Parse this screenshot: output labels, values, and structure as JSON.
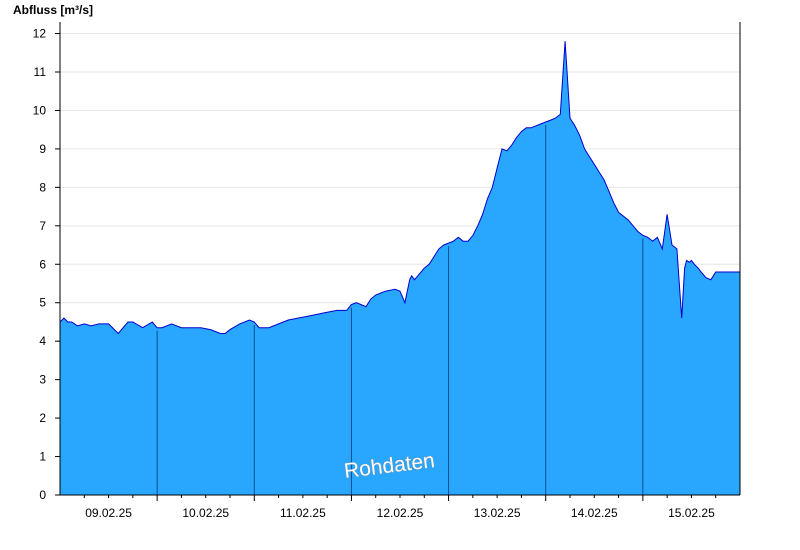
{
  "chart_data": {
    "type": "area",
    "ylabel": "Abfluss [m³/s]",
    "ylim": [
      0,
      12.3
    ],
    "yticks": [
      0,
      1,
      2,
      3,
      4,
      5,
      6,
      7,
      8,
      9,
      10,
      11,
      12
    ],
    "xlim": [
      0,
      7.0
    ],
    "day_boundaries": [
      1,
      2,
      3,
      4,
      5,
      6
    ],
    "xticks": [
      {
        "x": 0.5,
        "label": "09.02.25"
      },
      {
        "x": 1.5,
        "label": "10.02.25"
      },
      {
        "x": 2.5,
        "label": "11.02.25"
      },
      {
        "x": 3.5,
        "label": "12.02.25"
      },
      {
        "x": 4.5,
        "label": "13.02.25"
      },
      {
        "x": 5.5,
        "label": "14.02.25"
      },
      {
        "x": 6.5,
        "label": "15.02.25"
      }
    ],
    "watermark": "Rohdaten",
    "grid": true,
    "colors": {
      "fill": "#29a6fd",
      "line": "#0000cc",
      "divider": "#0b4f8f",
      "grid": "#e6e6e6"
    },
    "series": [
      {
        "x": [
          0.0,
          0.04,
          0.08,
          0.12,
          0.18,
          0.25,
          0.32,
          0.4,
          0.5,
          0.6,
          0.65,
          0.7,
          0.75,
          0.85,
          0.95,
          1.0,
          1.05,
          1.15,
          1.25,
          1.35,
          1.45,
          1.55,
          1.65,
          1.7,
          1.75,
          1.85,
          1.95,
          2.0,
          2.05,
          2.15,
          2.25,
          2.35,
          2.45,
          2.55,
          2.65,
          2.75,
          2.85,
          2.95,
          3.0,
          3.05,
          3.15,
          3.2,
          3.25,
          3.35,
          3.45,
          3.5,
          3.55,
          3.6,
          3.62,
          3.65,
          3.7,
          3.75,
          3.8,
          3.85,
          3.9,
          3.95,
          4.0,
          4.05,
          4.1,
          4.15,
          4.2,
          4.25,
          4.3,
          4.35,
          4.4,
          4.45,
          4.5,
          4.55,
          4.6,
          4.65,
          4.7,
          4.75,
          4.8,
          4.85,
          4.9,
          4.95,
          5.0,
          5.05,
          5.1,
          5.15,
          5.2,
          5.25,
          5.3,
          5.35,
          5.4,
          5.45,
          5.5,
          5.55,
          5.6,
          5.65,
          5.7,
          5.75,
          5.8,
          5.85,
          5.9,
          5.95,
          6.0,
          6.05,
          6.1,
          6.15,
          6.2,
          6.25,
          6.3,
          6.35,
          6.4,
          6.43,
          6.45,
          6.48,
          6.5,
          6.53,
          6.55,
          6.57,
          6.6,
          6.65,
          6.7,
          6.75,
          6.8,
          6.85,
          6.9,
          6.95,
          7.0
        ],
        "y": [
          4.5,
          4.6,
          4.5,
          4.5,
          4.4,
          4.45,
          4.4,
          4.45,
          4.45,
          4.2,
          4.35,
          4.5,
          4.5,
          4.35,
          4.5,
          4.35,
          4.35,
          4.45,
          4.35,
          4.35,
          4.35,
          4.3,
          4.2,
          4.2,
          4.3,
          4.45,
          4.55,
          4.5,
          4.35,
          4.35,
          4.45,
          4.55,
          4.6,
          4.65,
          4.7,
          4.75,
          4.8,
          4.8,
          4.95,
          5.0,
          4.9,
          5.1,
          5.2,
          5.3,
          5.35,
          5.3,
          5.0,
          5.6,
          5.7,
          5.6,
          5.75,
          5.9,
          6.0,
          6.2,
          6.4,
          6.5,
          6.55,
          6.6,
          6.7,
          6.6,
          6.6,
          6.75,
          7.0,
          7.3,
          7.7,
          8.0,
          8.5,
          9.0,
          8.95,
          9.1,
          9.3,
          9.45,
          9.55,
          9.55,
          9.6,
          9.65,
          9.7,
          9.75,
          9.8,
          9.9,
          11.8,
          9.8,
          9.6,
          9.35,
          9.0,
          8.8,
          8.6,
          8.4,
          8.2,
          7.9,
          7.6,
          7.35,
          7.25,
          7.15,
          7.0,
          6.85,
          6.75,
          6.7,
          6.6,
          6.7,
          6.4,
          7.3,
          6.5,
          6.4,
          4.6,
          5.9,
          6.1,
          6.05,
          6.1,
          6.0,
          5.95,
          5.9,
          5.8,
          5.65,
          5.6,
          5.8,
          5.8,
          5.8,
          5.8,
          5.8,
          5.8
        ]
      }
    ]
  }
}
